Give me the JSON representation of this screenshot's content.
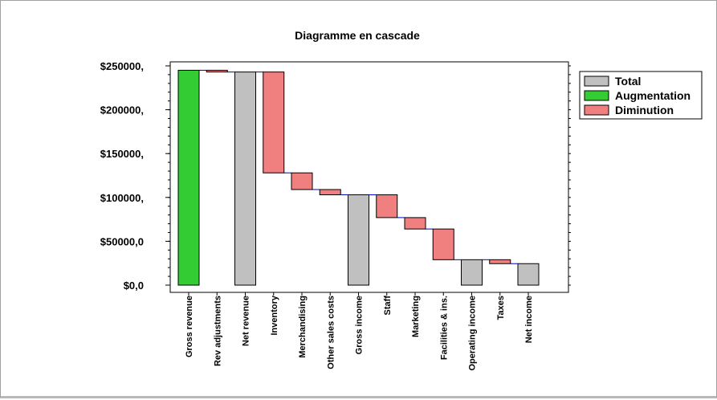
{
  "chart_data": {
    "type": "bar",
    "subtype": "waterfall",
    "title": "Diagramme en cascade",
    "xlabel": "",
    "ylabel": "",
    "categories": [
      "Gross revenue",
      "Rev adjustments",
      "Net revenue",
      "Inventory",
      "Merchandising",
      "Other sales costs",
      "Gross income",
      "Staff",
      "Marketing",
      "Facilities & ins.",
      "Operating income",
      "Taxes",
      "Net income"
    ],
    "bars": [
      {
        "category": "Gross revenue",
        "kind": "increase",
        "start": 0,
        "end": 245000
      },
      {
        "category": "Rev adjustments",
        "kind": "decrease",
        "start": 245000,
        "end": 243000
      },
      {
        "category": "Net revenue",
        "kind": "total",
        "start": 0,
        "end": 243000
      },
      {
        "category": "Inventory",
        "kind": "decrease",
        "start": 243000,
        "end": 128000
      },
      {
        "category": "Merchandising",
        "kind": "decrease",
        "start": 128000,
        "end": 109000
      },
      {
        "category": "Other sales costs",
        "kind": "decrease",
        "start": 109000,
        "end": 103000
      },
      {
        "category": "Gross income",
        "kind": "total",
        "start": 0,
        "end": 103000
      },
      {
        "category": "Staff",
        "kind": "decrease",
        "start": 103000,
        "end": 77000
      },
      {
        "category": "Marketing",
        "kind": "decrease",
        "start": 77000,
        "end": 64000
      },
      {
        "category": "Facilities & ins.",
        "kind": "decrease",
        "start": 64000,
        "end": 29000
      },
      {
        "category": "Operating income",
        "kind": "total",
        "start": 0,
        "end": 29000
      },
      {
        "category": "Taxes",
        "kind": "decrease",
        "start": 29000,
        "end": 24500
      },
      {
        "category": "Net income",
        "kind": "total",
        "start": 0,
        "end": 24500
      }
    ],
    "yticks": [
      0,
      50000,
      100000,
      150000,
      200000,
      250000
    ],
    "ytick_labels": [
      "$0,0",
      "$50000,0",
      "$100000,",
      "$150000,",
      "$200000,",
      "$250000,"
    ],
    "ylim": [
      0,
      255000
    ],
    "grid": false,
    "legend": {
      "placement": "top-right",
      "entries": [
        {
          "label": "Total",
          "kind": "total"
        },
        {
          "label": "Augmentation",
          "kind": "increase"
        },
        {
          "label": "Diminution",
          "kind": "decrease"
        }
      ]
    },
    "colors": {
      "total": "#c0c0c0",
      "increase": "#33cc33",
      "decrease": "#f08080",
      "connector": "#0000cc",
      "outline": "#000000"
    }
  }
}
